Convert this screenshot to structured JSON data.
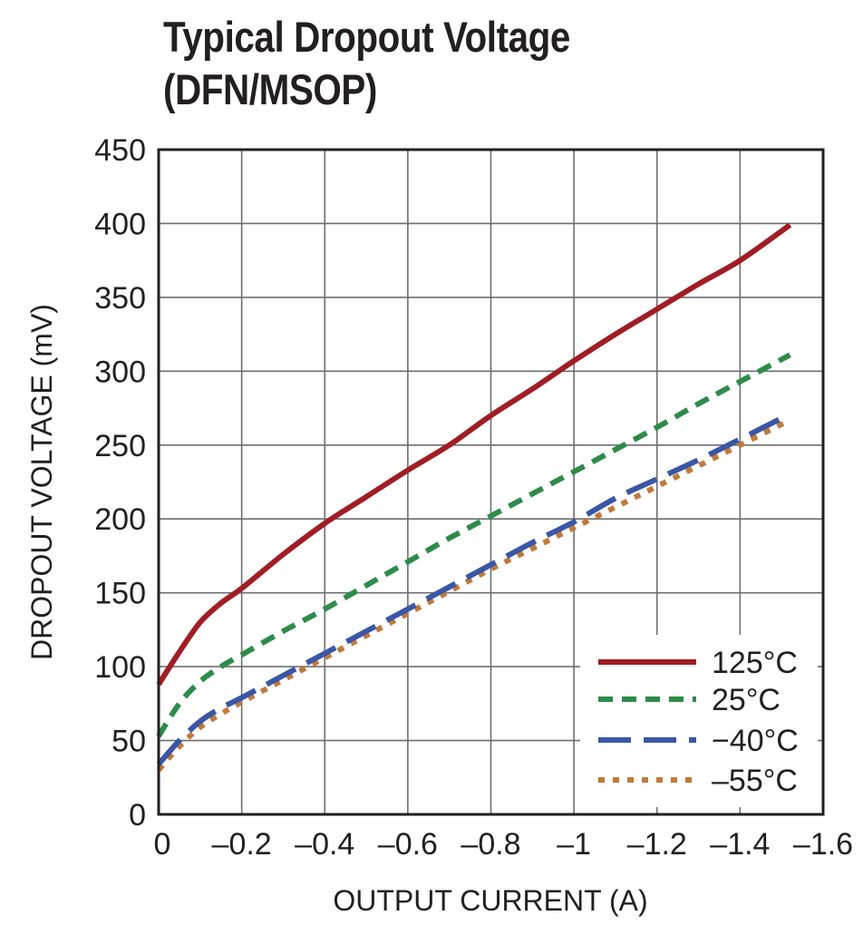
{
  "chart_data": {
    "type": "line",
    "title_line1": "Typical Dropout Voltage",
    "title_line2": "(DFN/MSOP)",
    "xlabel": "OUTPUT CURRENT (A)",
    "ylabel": "DROPOUT VOLTAGE (mV)",
    "xlim": [
      0,
      -1.6
    ],
    "ylim": [
      0,
      450
    ],
    "xticks": [
      "0",
      "–0.2",
      "–0.4",
      "–0.6",
      "–0.8",
      "–1",
      "–1.2",
      "–1.4",
      "–1.6"
    ],
    "yticks": [
      "0",
      "50",
      "100",
      "150",
      "200",
      "250",
      "300",
      "350",
      "400",
      "450"
    ],
    "grid": true,
    "legend_position": "bottom-right",
    "series": [
      {
        "name": "125°C",
        "color": "#a11d25",
        "style": "solid",
        "x": [
          0,
          -0.05,
          -0.1,
          -0.15,
          -0.2,
          -0.3,
          -0.4,
          -0.5,
          -0.6,
          -0.7,
          -0.8,
          -0.9,
          -1.0,
          -1.1,
          -1.2,
          -1.3,
          -1.4,
          -1.52
        ],
        "y": [
          88,
          110,
          130,
          143,
          153,
          176,
          197,
          215,
          233,
          250,
          270,
          288,
          307,
          325,
          342,
          359,
          375,
          399
        ]
      },
      {
        "name": "25°C",
        "color": "#2e8b4a",
        "style": "dashed",
        "x": [
          0,
          -0.05,
          -0.1,
          -0.15,
          -0.2,
          -0.3,
          -0.4,
          -0.5,
          -0.6,
          -0.7,
          -0.8,
          -0.9,
          -1.0,
          -1.1,
          -1.2,
          -1.3,
          -1.4,
          -1.52
        ],
        "y": [
          53,
          75,
          90,
          100,
          108,
          124,
          139,
          155,
          171,
          187,
          202,
          217,
          232,
          247,
          262,
          278,
          293,
          311
        ]
      },
      {
        "name": "−40°C",
        "color": "#3a56a6",
        "style": "longdash",
        "x": [
          0,
          -0.05,
          -0.1,
          -0.15,
          -0.2,
          -0.3,
          -0.4,
          -0.5,
          -0.6,
          -0.7,
          -0.8,
          -0.9,
          -1.0,
          -1.1,
          -1.2,
          -1.3,
          -1.4,
          -1.52
        ],
        "y": [
          34,
          50,
          63,
          72,
          79,
          94,
          109,
          124,
          139,
          154,
          169,
          184,
          198,
          214,
          227,
          240,
          254,
          271
        ]
      },
      {
        "name": "–55°C",
        "color": "#c07a3a",
        "style": "dotted",
        "x": [
          0,
          -0.05,
          -0.1,
          -0.15,
          -0.2,
          -0.3,
          -0.4,
          -0.5,
          -0.6,
          -0.7,
          -0.8,
          -0.9,
          -1.0,
          -1.1,
          -1.2,
          -1.3,
          -1.4,
          -1.52
        ],
        "y": [
          30,
          46,
          59,
          68,
          76,
          91,
          106,
          121,
          136,
          151,
          166,
          180,
          194,
          208,
          222,
          236,
          250,
          267
        ]
      }
    ]
  }
}
